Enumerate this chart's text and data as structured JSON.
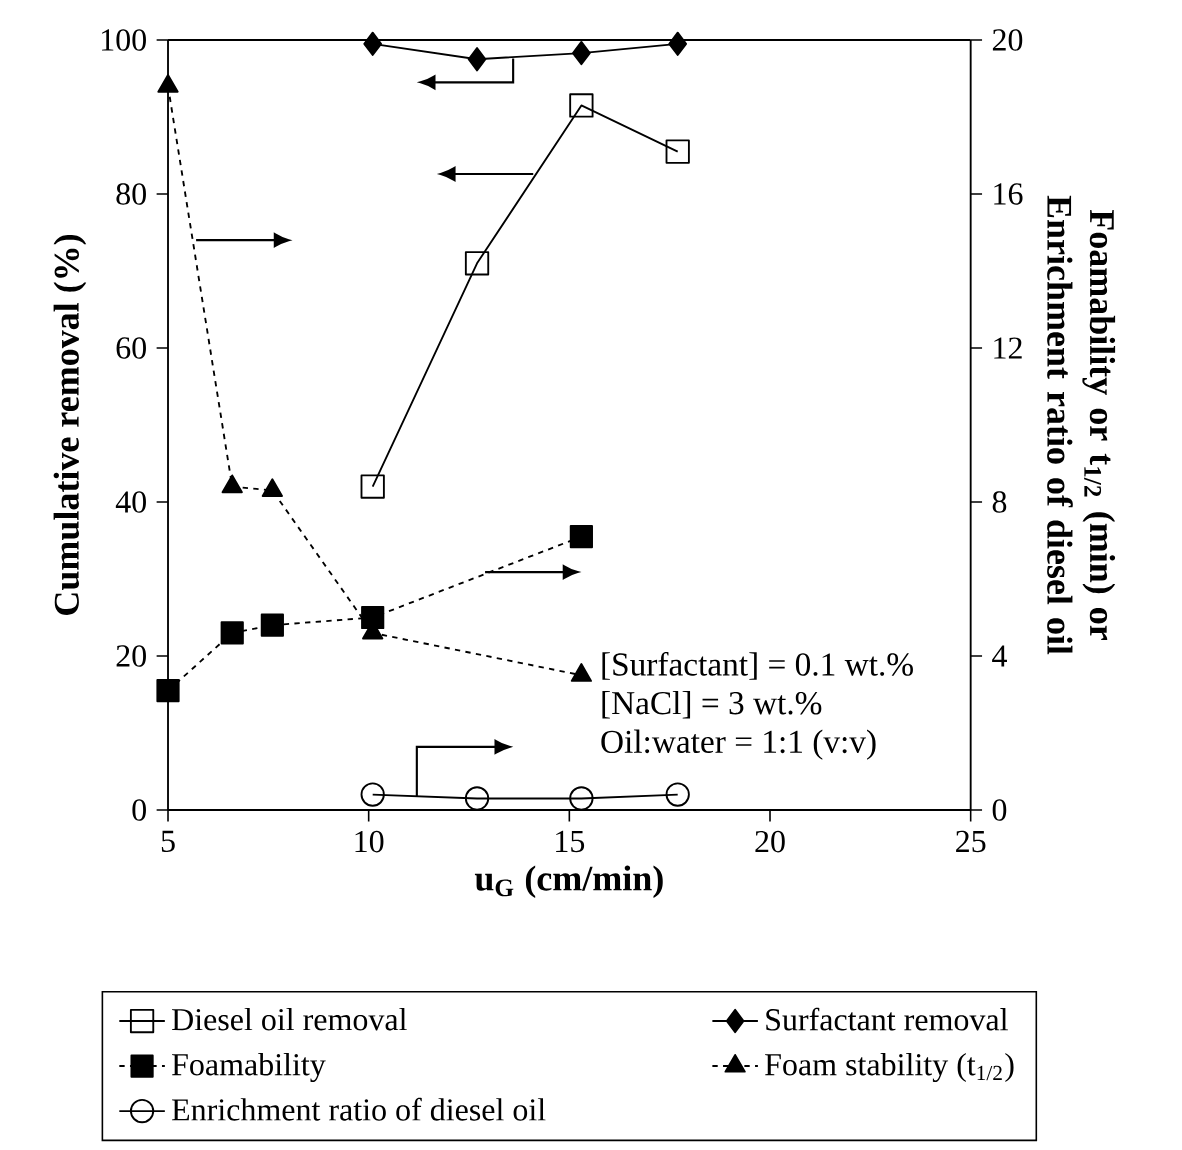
{
  "chart_data": {
    "type": "line",
    "xlabel": "u$_{G}$ (cm/min)",
    "ylabel": "Cumulative removal (%)",
    "y2label": "Foamability or t$_{1/2}$ (min) or Enrichment ratio of diesel oil",
    "xlim": [
      5,
      25
    ],
    "xticks": [
      5,
      10,
      15,
      20,
      25
    ],
    "ylim": [
      0,
      100
    ],
    "yticks": [
      0,
      20,
      40,
      60,
      80,
      100
    ],
    "y2lim": [
      0,
      20
    ],
    "y2ticks": [
      0,
      4,
      8,
      12,
      16,
      20
    ],
    "legend": "bottom",
    "annotations": [
      "[Surfactant] = 0.1 wt.%",
      "[NaCl] = 3 wt.%",
      "Oil:water = 1:1 (v:v)"
    ],
    "series": [
      {
        "name": "Diesel oil removal",
        "color": "#000000",
        "marker": "square",
        "line_style": "solid",
        "x": [
          10.1,
          12.7,
          15.3,
          17.7
        ],
        "values": [
          42,
          71,
          91.5,
          85.5
        ]
      },
      {
        "name": "Surfactant removal",
        "color": "#000000",
        "marker": "diamond",
        "line_style": "solid",
        "x": [
          10.1,
          12.7,
          15.3,
          17.7
        ],
        "values": [
          99.5,
          97.5,
          98.3,
          99.5
        ]
      },
      {
        "name": "Foamability",
        "color": "#000000",
        "marker": "square",
        "line_style": "dashed",
        "axis": "y2",
        "x": [
          5,
          6.6,
          7.6,
          10.1,
          15.3
        ],
        "values": [
          3.1,
          4.6,
          4.8,
          5.0,
          7.1
        ]
      },
      {
        "name": "Foam stability (t$_{1/2}$)",
        "color": "#000000",
        "marker": "triangle",
        "line_style": "dashed",
        "axis": "y2",
        "x": [
          5,
          6.6,
          7.6,
          10.1,
          15.3
        ],
        "values": [
          18.8,
          8.4,
          8.3,
          4.6,
          3.5
        ]
      },
      {
        "name": "Enrichment ratio of diesel oil",
        "color": "#000000",
        "marker": "circle",
        "line_style": "solid",
        "axis": "y2",
        "x": [
          10.1,
          12.7,
          15.3,
          17.7
        ],
        "values": [
          0.4,
          0.3,
          0.3,
          0.4
        ]
      }
    ]
  }
}
